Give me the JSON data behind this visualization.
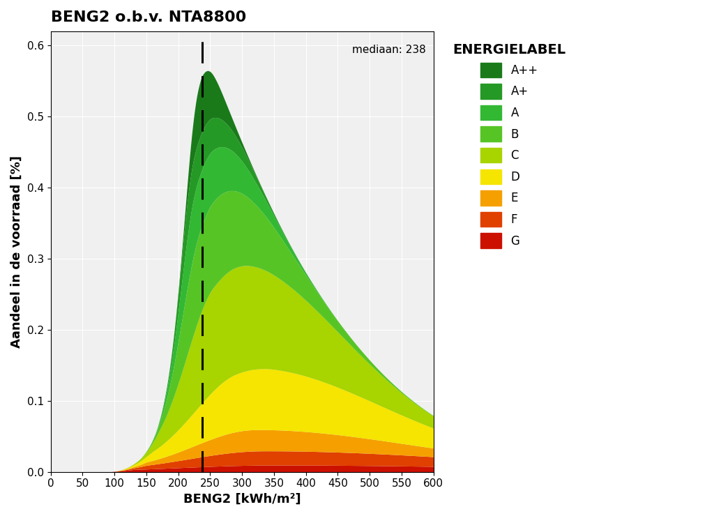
{
  "title": "BENG2 o.b.v. NTA8800",
  "xlabel": "BENG2 [kWh/m²]",
  "ylabel": "Aandeel in de voorraad [%]",
  "median_value": 238,
  "median_label": "mediaan: 238",
  "xlim": [
    0,
    600
  ],
  "ylim": [
    0,
    0.62
  ],
  "xticks": [
    0,
    50,
    100,
    150,
    200,
    250,
    300,
    350,
    400,
    450,
    500,
    550,
    600
  ],
  "yticks": [
    0.0,
    0.1,
    0.2,
    0.3,
    0.4,
    0.5,
    0.6
  ],
  "legend_title": "ENERGIELABEL",
  "labels": [
    "A++",
    "A+",
    "A",
    "B",
    "C",
    "D",
    "E",
    "F",
    "G"
  ],
  "colors": [
    "#1a7a1a",
    "#259925",
    "#33b833",
    "#57c426",
    "#a8d400",
    "#f5e500",
    "#f5a000",
    "#e04000",
    "#cc1000"
  ],
  "background_color": "#f0f0f0",
  "dashed_line_x": 238
}
